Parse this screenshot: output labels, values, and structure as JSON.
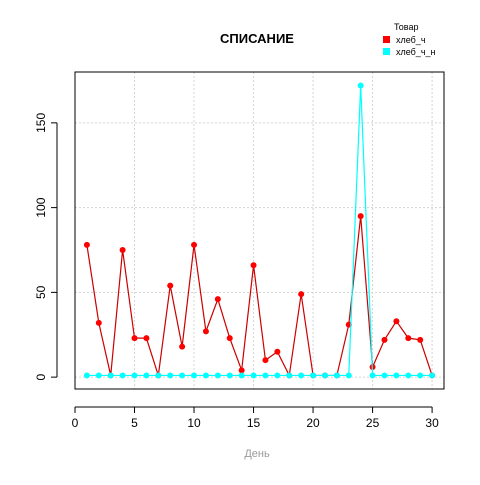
{
  "chart_data": {
    "type": "line",
    "title": "СПИСАНИЕ",
    "xlabel": "День",
    "ylabel": "",
    "xlim": [
      0,
      31
    ],
    "ylim": [
      -7,
      180
    ],
    "x_ticks": [
      0,
      5,
      10,
      15,
      20,
      25,
      30
    ],
    "y_ticks": [
      0,
      50,
      100,
      150
    ],
    "grid": true,
    "legend": {
      "title": "Товар",
      "placement": "top-right",
      "entries": [
        {
          "label": "хлеб_ч",
          "color": "#ff0000"
        },
        {
          "label": "хлеб_ч_н",
          "color": "#00ffff"
        }
      ]
    },
    "x": [
      1,
      2,
      3,
      4,
      5,
      6,
      7,
      8,
      9,
      10,
      11,
      12,
      13,
      14,
      15,
      16,
      17,
      18,
      19,
      20,
      21,
      22,
      23,
      24,
      25,
      26,
      27,
      28,
      29,
      30
    ],
    "series": [
      {
        "name": "хлеб_ч",
        "color": "#ff0000",
        "line_color": "#cc0000",
        "values": [
          78,
          32,
          1,
          75,
          23,
          23,
          1,
          54,
          18,
          78,
          27,
          46,
          23,
          4,
          66,
          10,
          15,
          1,
          49,
          1,
          1,
          1,
          31,
          95,
          6,
          22,
          33,
          23,
          22,
          1
        ]
      },
      {
        "name": "хлеб_ч_н",
        "color": "#00ffff",
        "line_color": "#00ffff",
        "values": [
          1,
          1,
          1,
          1,
          1,
          1,
          1,
          1,
          1,
          1,
          1,
          1,
          1,
          1,
          1,
          1,
          1,
          1,
          1,
          1,
          1,
          1,
          1,
          172,
          1,
          1,
          1,
          1,
          1,
          1
        ]
      }
    ]
  }
}
